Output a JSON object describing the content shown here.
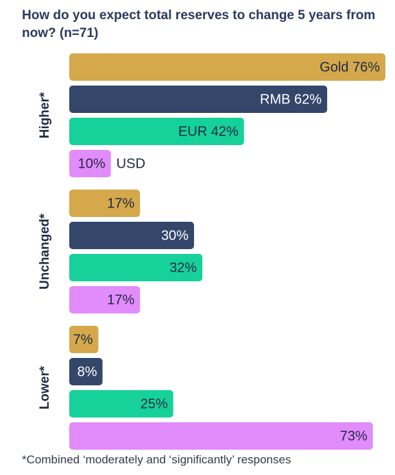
{
  "title": "How do you expect total reserves to change 5 years from now? (n=71)",
  "footnote": "*Combined ‘moderately and ‘significantly’ responses",
  "colors": {
    "Gold": "#d4a84b",
    "RMB": "#35466b",
    "EUR": "#16d19a",
    "USD": "#e28bfa"
  },
  "chart_data": {
    "type": "bar",
    "orientation": "horizontal",
    "series_order": [
      "Gold",
      "RMB",
      "EUR",
      "USD"
    ],
    "xlim": [
      0,
      76
    ],
    "groups": [
      {
        "label": "Higher*",
        "bars": [
          {
            "series": "Gold",
            "value": 76,
            "label": "Gold 76%"
          },
          {
            "series": "RMB",
            "value": 62,
            "label": "RMB 62%"
          },
          {
            "series": "EUR",
            "value": 42,
            "label": "EUR 42%"
          },
          {
            "series": "USD",
            "value": 10,
            "label": "10%",
            "outside_label": "USD"
          }
        ]
      },
      {
        "label": "Unchanged*",
        "bars": [
          {
            "series": "Gold",
            "value": 17,
            "label": "17%"
          },
          {
            "series": "RMB",
            "value": 30,
            "label": "30%"
          },
          {
            "series": "EUR",
            "value": 32,
            "label": "32%"
          },
          {
            "series": "USD",
            "value": 17,
            "label": "17%"
          }
        ]
      },
      {
        "label": "Lower*",
        "bars": [
          {
            "series": "Gold",
            "value": 7,
            "label": "7%"
          },
          {
            "series": "RMB",
            "value": 8,
            "label": "8%"
          },
          {
            "series": "EUR",
            "value": 25,
            "label": "25%"
          },
          {
            "series": "USD",
            "value": 73,
            "label": "73%"
          }
        ]
      }
    ]
  }
}
